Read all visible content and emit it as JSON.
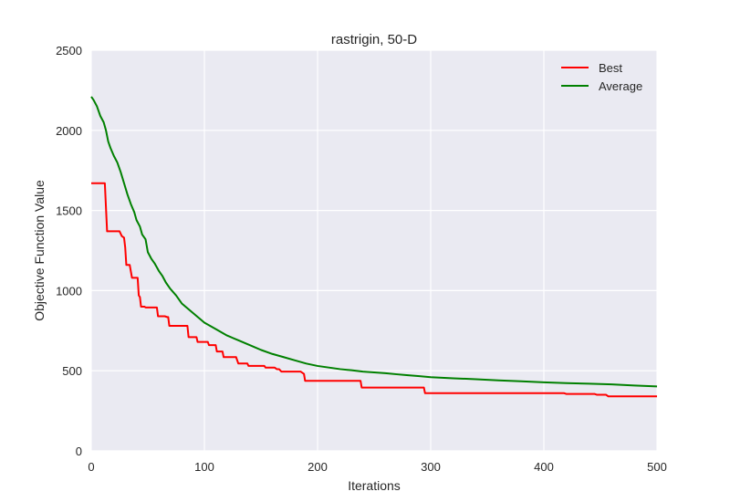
{
  "chart_data": {
    "type": "line",
    "title": "rastrigin, 50-D",
    "xlabel": "Iterations",
    "ylabel": "Objective Function Value",
    "xlim": [
      0,
      500
    ],
    "ylim": [
      0,
      2500
    ],
    "xticks": [
      0,
      100,
      200,
      300,
      400,
      500
    ],
    "yticks": [
      0,
      500,
      1000,
      1500,
      2000,
      2500
    ],
    "xtick_labels": [
      "0",
      "100",
      "200",
      "300",
      "400",
      "500"
    ],
    "ytick_labels": [
      "0",
      "500",
      "1000",
      "1500",
      "2000",
      "2500"
    ],
    "grid": true,
    "legend_position": "top-right",
    "series": [
      {
        "name": "Best",
        "color": "#ff0000",
        "step": true,
        "points": [
          [
            0,
            1670
          ],
          [
            12,
            1670
          ],
          [
            14,
            1370
          ],
          [
            25,
            1370
          ],
          [
            27,
            1340
          ],
          [
            29,
            1330
          ],
          [
            30,
            1270
          ],
          [
            31,
            1160
          ],
          [
            34,
            1160
          ],
          [
            36,
            1080
          ],
          [
            41,
            1080
          ],
          [
            42,
            970
          ],
          [
            43,
            960
          ],
          [
            44,
            900
          ],
          [
            47,
            900
          ],
          [
            48,
            895
          ],
          [
            58,
            895
          ],
          [
            59,
            840
          ],
          [
            65,
            840
          ],
          [
            67,
            835
          ],
          [
            68,
            835
          ],
          [
            69,
            780
          ],
          [
            85,
            780
          ],
          [
            86,
            710
          ],
          [
            93,
            710
          ],
          [
            94,
            680
          ],
          [
            103,
            680
          ],
          [
            104,
            660
          ],
          [
            110,
            660
          ],
          [
            111,
            620
          ],
          [
            116,
            620
          ],
          [
            117,
            585
          ],
          [
            128,
            585
          ],
          [
            130,
            545
          ],
          [
            138,
            545
          ],
          [
            139,
            530
          ],
          [
            153,
            530
          ],
          [
            154,
            520
          ],
          [
            162,
            520
          ],
          [
            164,
            510
          ],
          [
            166,
            510
          ],
          [
            168,
            495
          ],
          [
            185,
            495
          ],
          [
            186,
            490
          ],
          [
            188,
            480
          ],
          [
            189,
            437
          ],
          [
            238,
            437
          ],
          [
            239,
            395
          ],
          [
            294,
            395
          ],
          [
            295,
            360
          ],
          [
            418,
            360
          ],
          [
            420,
            355
          ],
          [
            445,
            355
          ],
          [
            447,
            350
          ],
          [
            455,
            350
          ],
          [
            457,
            340
          ],
          [
            500,
            340
          ]
        ]
      },
      {
        "name": "Average",
        "color": "#008000",
        "step": false,
        "points": [
          [
            0,
            2210
          ],
          [
            2,
            2190
          ],
          [
            5,
            2150
          ],
          [
            8,
            2090
          ],
          [
            11,
            2050
          ],
          [
            13,
            2000
          ],
          [
            15,
            1930
          ],
          [
            17,
            1890
          ],
          [
            20,
            1840
          ],
          [
            23,
            1800
          ],
          [
            26,
            1740
          ],
          [
            29,
            1670
          ],
          [
            32,
            1600
          ],
          [
            35,
            1540
          ],
          [
            38,
            1490
          ],
          [
            40,
            1440
          ],
          [
            43,
            1400
          ],
          [
            45,
            1350
          ],
          [
            48,
            1320
          ],
          [
            50,
            1240
          ],
          [
            53,
            1200
          ],
          [
            56,
            1170
          ],
          [
            60,
            1120
          ],
          [
            63,
            1090
          ],
          [
            66,
            1050
          ],
          [
            70,
            1010
          ],
          [
            75,
            970
          ],
          [
            80,
            920
          ],
          [
            90,
            860
          ],
          [
            100,
            800
          ],
          [
            110,
            760
          ],
          [
            120,
            720
          ],
          [
            130,
            690
          ],
          [
            140,
            660
          ],
          [
            150,
            630
          ],
          [
            160,
            605
          ],
          [
            170,
            585
          ],
          [
            180,
            565
          ],
          [
            190,
            545
          ],
          [
            200,
            530
          ],
          [
            210,
            520
          ],
          [
            220,
            510
          ],
          [
            230,
            503
          ],
          [
            240,
            495
          ],
          [
            250,
            490
          ],
          [
            260,
            485
          ],
          [
            270,
            478
          ],
          [
            280,
            472
          ],
          [
            290,
            466
          ],
          [
            300,
            460
          ],
          [
            320,
            453
          ],
          [
            340,
            447
          ],
          [
            360,
            440
          ],
          [
            380,
            434
          ],
          [
            400,
            428
          ],
          [
            420,
            423
          ],
          [
            440,
            419
          ],
          [
            460,
            415
          ],
          [
            480,
            408
          ],
          [
            500,
            402
          ]
        ]
      }
    ]
  }
}
